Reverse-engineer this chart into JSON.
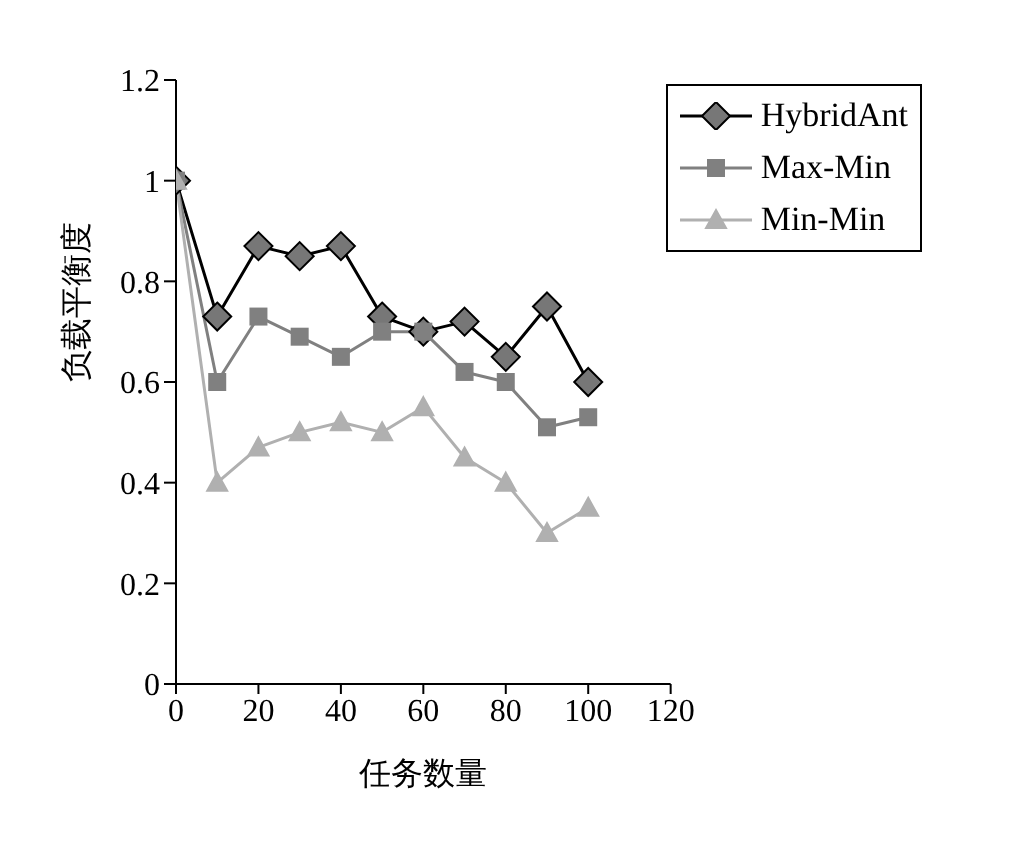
{
  "chart_data": {
    "type": "line",
    "xlabel": "任务数量",
    "ylabel": "负载平衡度",
    "x": [
      0,
      10,
      20,
      30,
      40,
      50,
      60,
      70,
      80,
      90,
      100
    ],
    "series": [
      {
        "name": "HybridAnt",
        "color": "#000000",
        "marker": "diamond",
        "values": [
          1,
          0.73,
          0.87,
          0.85,
          0.87,
          0.73,
          0.7,
          0.72,
          0.65,
          0.75,
          0.6
        ]
      },
      {
        "name": "Max-Min",
        "color": "#808080",
        "marker": "square",
        "values": [
          1,
          0.6,
          0.73,
          0.69,
          0.65,
          0.7,
          0.7,
          0.62,
          0.6,
          0.51,
          0.53
        ]
      },
      {
        "name": "Min-Min",
        "color": "#b0b0b0",
        "marker": "triangle",
        "values": [
          1,
          0.4,
          0.47,
          0.5,
          0.52,
          0.5,
          0.55,
          0.45,
          0.4,
          0.3,
          0.35
        ]
      }
    ],
    "xlim": [
      0,
      120
    ],
    "xticks": [
      0,
      20,
      40,
      60,
      80,
      100,
      120
    ],
    "ylim": [
      0,
      1.2
    ],
    "yticks": [
      0,
      0.2,
      0.4,
      0.6,
      0.8,
      1,
      1.2
    ],
    "grid": false,
    "legend": "top right",
    "line_style": "solid"
  }
}
